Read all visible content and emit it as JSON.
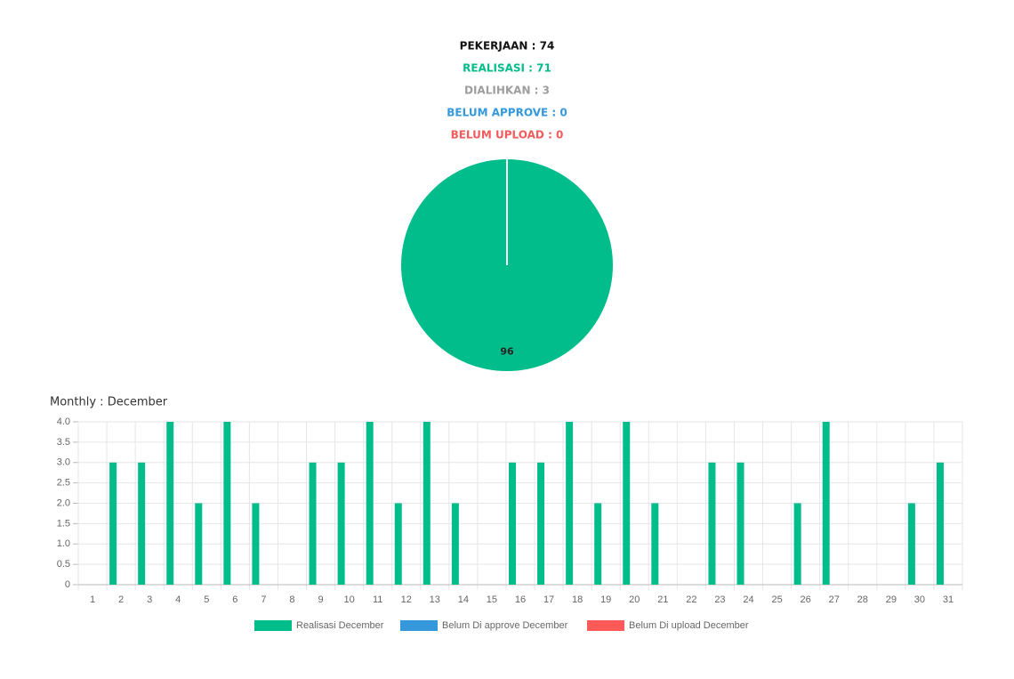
{
  "header": {
    "lines": [
      {
        "text": "PEKERJAAN : 74",
        "color": "#111111"
      },
      {
        "text": "REALISASI : 71",
        "color": "#00bd8b"
      },
      {
        "text": "DIALIHKAN : 3",
        "color": "#9e9e9e"
      },
      {
        "text": "BELUM APPROVE : 0",
        "color": "#3498db"
      },
      {
        "text": "BELUM UPLOAD : 0",
        "color": "#f25b5b"
      }
    ]
  },
  "chart_data": [
    {
      "type": "pie",
      "values": [
        96
      ],
      "colors": [
        "#00bd8b"
      ]
    },
    {
      "type": "bar",
      "title": "Monthly : December",
      "categories": [
        "1",
        "2",
        "3",
        "4",
        "5",
        "6",
        "7",
        "8",
        "9",
        "10",
        "11",
        "12",
        "13",
        "14",
        "15",
        "16",
        "17",
        "18",
        "19",
        "20",
        "21",
        "22",
        "23",
        "24",
        "25",
        "26",
        "27",
        "28",
        "29",
        "30",
        "31"
      ],
      "series": [
        {
          "name": "Realisasi December",
          "color": "#00bd8b",
          "values": [
            0,
            3,
            3,
            4,
            2,
            4,
            2,
            0,
            3,
            3,
            4,
            2,
            4,
            2,
            0,
            3,
            3,
            4,
            2,
            4,
            2,
            0,
            3,
            3,
            0,
            2,
            4,
            0,
            0,
            2,
            3
          ]
        },
        {
          "name": "Belum Di approve December",
          "color": "#3498db",
          "values": [
            0,
            0,
            0,
            0,
            0,
            0,
            0,
            0,
            0,
            0,
            0,
            0,
            0,
            0,
            0,
            0,
            0,
            0,
            0,
            0,
            0,
            0,
            0,
            0,
            0,
            0,
            0,
            0,
            0,
            0,
            0
          ]
        },
        {
          "name": "Belum Di upload December",
          "color": "#ff5a5a",
          "values": [
            0,
            0,
            0,
            0,
            0,
            0,
            0,
            0,
            0,
            0,
            0,
            0,
            0,
            0,
            0,
            0,
            0,
            0,
            0,
            0,
            0,
            0,
            0,
            0,
            0,
            0,
            0,
            0,
            0,
            0,
            0
          ]
        }
      ],
      "ylim": [
        0,
        4
      ],
      "yticks": [
        0,
        0.5,
        {
          "value": 1,
          "label": "1.0"
        },
        1.5,
        {
          "value": 2,
          "label": "2.0"
        },
        2.5,
        {
          "value": 3,
          "label": "3.0"
        },
        3.5,
        {
          "value": 4,
          "label": "4.0"
        }
      ],
      "grid": true,
      "legend": "bottom"
    }
  ]
}
